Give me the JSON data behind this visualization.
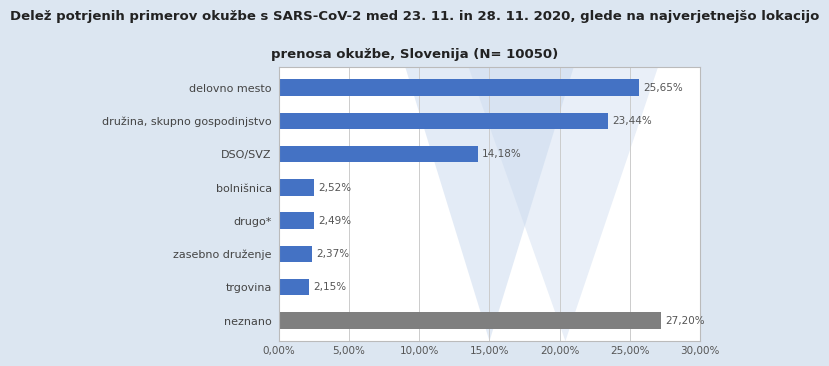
{
  "title_line1": "Delež potrjenih primerov okužbe s SARS-CoV-2 med 23. 11. in 28. 11. 2020, glede na najverjetnejšo lokacijo",
  "title_line2": "prenosa okužbe, Slovenija (N= 10050)",
  "categories": [
    "delovno mesto",
    "družina, skupno gospodinjstvo",
    "DSO/SVZ",
    "bolnišnica",
    "drugo*",
    "zasebno druženje",
    "trgovina",
    "neznano"
  ],
  "values": [
    25.65,
    23.44,
    14.18,
    2.52,
    2.49,
    2.37,
    2.15,
    27.2
  ],
  "bar_colors": [
    "#4472c4",
    "#4472c4",
    "#4472c4",
    "#4472c4",
    "#4472c4",
    "#4472c4",
    "#4472c4",
    "#7f7f7f"
  ],
  "value_labels": [
    "25,65%",
    "23,44%",
    "14,18%",
    "2,52%",
    "2,49%",
    "2,37%",
    "2,15%",
    "27,20%"
  ],
  "xlim": [
    0,
    30
  ],
  "xticks": [
    0,
    5,
    10,
    15,
    20,
    25,
    30
  ],
  "xtick_labels": [
    "0,00%",
    "5,00%",
    "10,00%",
    "15,00%",
    "20,00%",
    "25,00%",
    "30,00%"
  ],
  "background_outer": "#dce6f1",
  "background_inner": "#ffffff",
  "title_fontsize": 9.5,
  "label_fontsize": 8.0,
  "value_fontsize": 7.5,
  "tick_fontsize": 7.5,
  "bar_height": 0.5
}
